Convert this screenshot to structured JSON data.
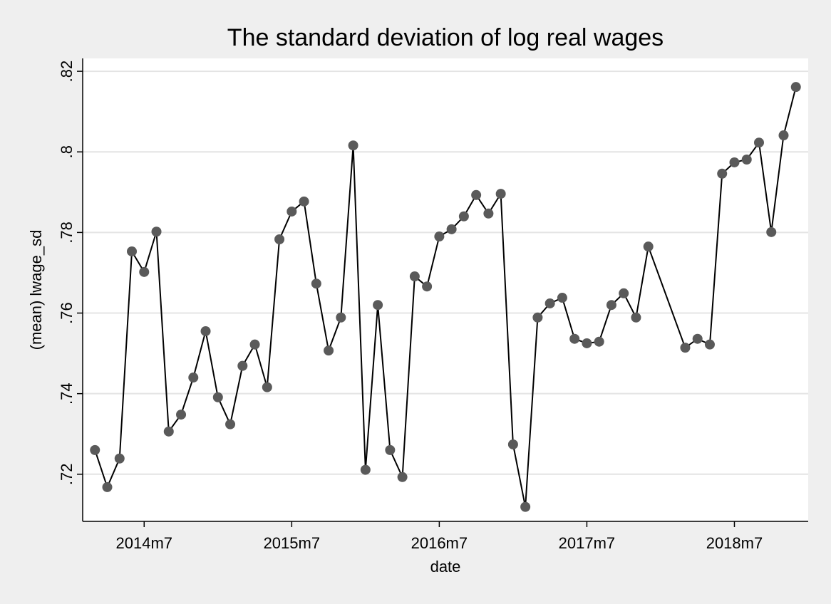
{
  "chart_data": {
    "type": "line",
    "title": "The standard deviation of log real wages",
    "xlabel": "date",
    "ylabel": "(mean) lwage_sd",
    "x": [
      650,
      651,
      652,
      653,
      654,
      655,
      656,
      657,
      658,
      659,
      660,
      661,
      662,
      663,
      664,
      665,
      666,
      667,
      668,
      669,
      670,
      671,
      672,
      673,
      674,
      675,
      676,
      677,
      678,
      679,
      680,
      681,
      682,
      683,
      684,
      685,
      686,
      687,
      688,
      689,
      690,
      691,
      692,
      693,
      694,
      695,
      698,
      699,
      700,
      701,
      702,
      703,
      704,
      705,
      706,
      707
    ],
    "values": [
      0.726,
      0.7168,
      0.7239,
      0.7753,
      0.7702,
      0.7802,
      0.7306,
      0.7348,
      0.744,
      0.7555,
      0.7391,
      0.7324,
      0.7469,
      0.7522,
      0.7416,
      0.7783,
      0.7852,
      0.7877,
      0.7673,
      0.7507,
      0.7589,
      0.8016,
      0.7211,
      0.762,
      0.726,
      0.7193,
      0.7691,
      0.7666,
      0.779,
      0.7808,
      0.784,
      0.7893,
      0.7847,
      0.7896,
      0.7274,
      0.7119,
      0.7589,
      0.7624,
      0.7638,
      0.7536,
      0.7525,
      0.7529,
      0.762,
      0.7649,
      0.7589,
      0.7765,
      0.7514,
      0.7536,
      0.7522,
      0.7946,
      0.7974,
      0.7981,
      0.8023,
      0.7801,
      0.8041,
      0.8161
    ],
    "color": "#000000",
    "marker_color": "#5a5a5a",
    "xlim": [
      649,
      708
    ],
    "xticks": [
      {
        "value": 654,
        "label": "2014m7"
      },
      {
        "value": 666,
        "label": "2015m7"
      },
      {
        "value": 678,
        "label": "2016m7"
      },
      {
        "value": 690,
        "label": "2017m7"
      },
      {
        "value": 702,
        "label": "2018m7"
      }
    ],
    "ylim": [
      0.7083,
      0.8232
    ],
    "yticks": [
      {
        "value": 0.72,
        "label": ".72"
      },
      {
        "value": 0.74,
        "label": ".74"
      },
      {
        "value": 0.76,
        "label": ".76"
      },
      {
        "value": 0.78,
        "label": ".78"
      },
      {
        "value": 0.8,
        "label": ".8"
      },
      {
        "value": 0.82,
        "label": ".82"
      }
    ],
    "grid": true
  }
}
